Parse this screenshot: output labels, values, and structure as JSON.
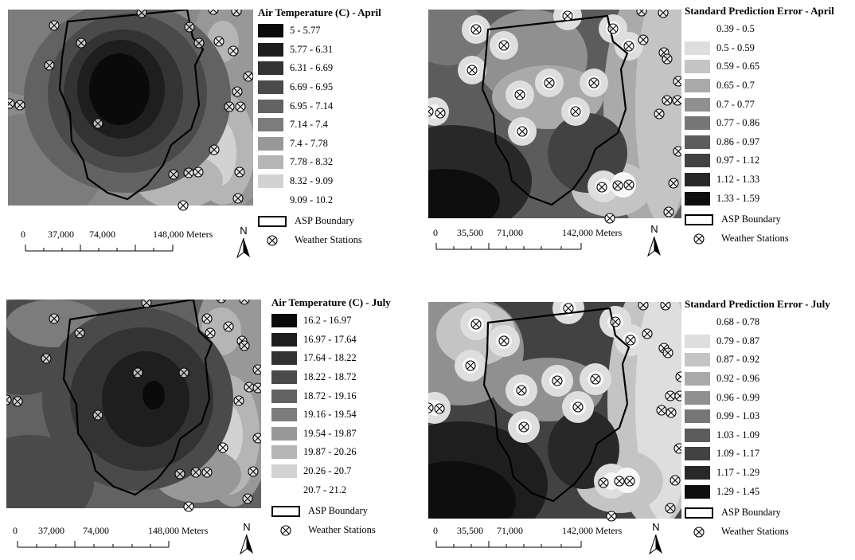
{
  "panels": [
    {
      "id": "april-temp",
      "legend_title": "Air Temperature (C) - April",
      "classes": [
        "5 - 5.77",
        "5.77 - 6.31",
        "6.31 - 6.69",
        "6.69 - 6.95",
        "6.95 - 7.14",
        "7.14 - 7.4",
        "7.4 - 7.78",
        "7.78 - 8.32",
        "8.32 - 9.09",
        "9.09 - 10.2"
      ],
      "colors": [
        "#0a0a0a",
        "#1e1e1e",
        "#333333",
        "#4a4a4a",
        "#626262",
        "#7c7c7c",
        "#989898",
        "#b5b5b5",
        "#d2d2d2",
        "#ececec"
      ],
      "boundary_label": "ASP Boundary",
      "stations_label": "Weather Stations",
      "scale_labels": [
        "0",
        "37,000",
        "74,000",
        "148,000 Meters"
      ],
      "north_label": "N"
    },
    {
      "id": "april-error",
      "legend_title": "Standard Prediction Error - April",
      "classes": [
        "0.39 - 0.5",
        "0.5 - 0.59",
        "0.59 - 0.65",
        "0.65 - 0.7",
        "0.7 - 0.77",
        "0.77 - 0.86",
        "0.86 - 0.97",
        "0.97 - 1.12",
        "1.12 - 1.33",
        "1.33 - 1.59"
      ],
      "colors": [
        "#f7f7f7",
        "#dedede",
        "#c4c4c4",
        "#aaaaaa",
        "#909090",
        "#767676",
        "#5c5c5c",
        "#424242",
        "#282828",
        "#0e0e0e"
      ],
      "boundary_label": "ASP Boundary",
      "stations_label": "Weather Stations",
      "scale_labels": [
        "0",
        "35,500",
        "71,000",
        "142,000 Meters"
      ],
      "north_label": "N"
    },
    {
      "id": "july-temp",
      "legend_title": "Air Temperature (C) - July",
      "classes": [
        "16.2 - 16.97",
        "16.97 - 17.64",
        "17.64 - 18.22",
        "18.22 - 18.72",
        "18.72 - 19.16",
        "19.16 - 19.54",
        "19.54 - 19.87",
        "19.87 - 20.26",
        "20.26 - 20.7",
        "20.7 - 21.2"
      ],
      "colors": [
        "#0a0a0a",
        "#1e1e1e",
        "#333333",
        "#4a4a4a",
        "#626262",
        "#7c7c7c",
        "#989898",
        "#b5b5b5",
        "#d2d2d2",
        "#ececec"
      ],
      "boundary_label": "ASP Boundary",
      "stations_label": "Weather Stations",
      "scale_labels": [
        "0",
        "37,000",
        "74,000",
        "148,000 Meters"
      ],
      "north_label": "N"
    },
    {
      "id": "july-error",
      "legend_title": "Standard Prediction Error - July",
      "classes": [
        "0.68 - 0.78",
        "0.79 - 0.87",
        "0.87 - 0.92",
        "0.92 - 0.96",
        "0.96 - 0.99",
        "0.99 - 1.03",
        "1.03 - 1.09",
        "1.09 - 1.17",
        "1.17 - 1.29",
        "1.29 - 1.45"
      ],
      "colors": [
        "#f7f7f7",
        "#dedede",
        "#c4c4c4",
        "#aaaaaa",
        "#909090",
        "#767676",
        "#5c5c5c",
        "#424242",
        "#282828",
        "#0e0e0e"
      ],
      "boundary_label": "ASP Boundary",
      "stations_label": "Weather Stations",
      "scale_labels": [
        "0",
        "35,500",
        "71,000",
        "142,000 Meters"
      ],
      "north_label": "N"
    }
  ]
}
